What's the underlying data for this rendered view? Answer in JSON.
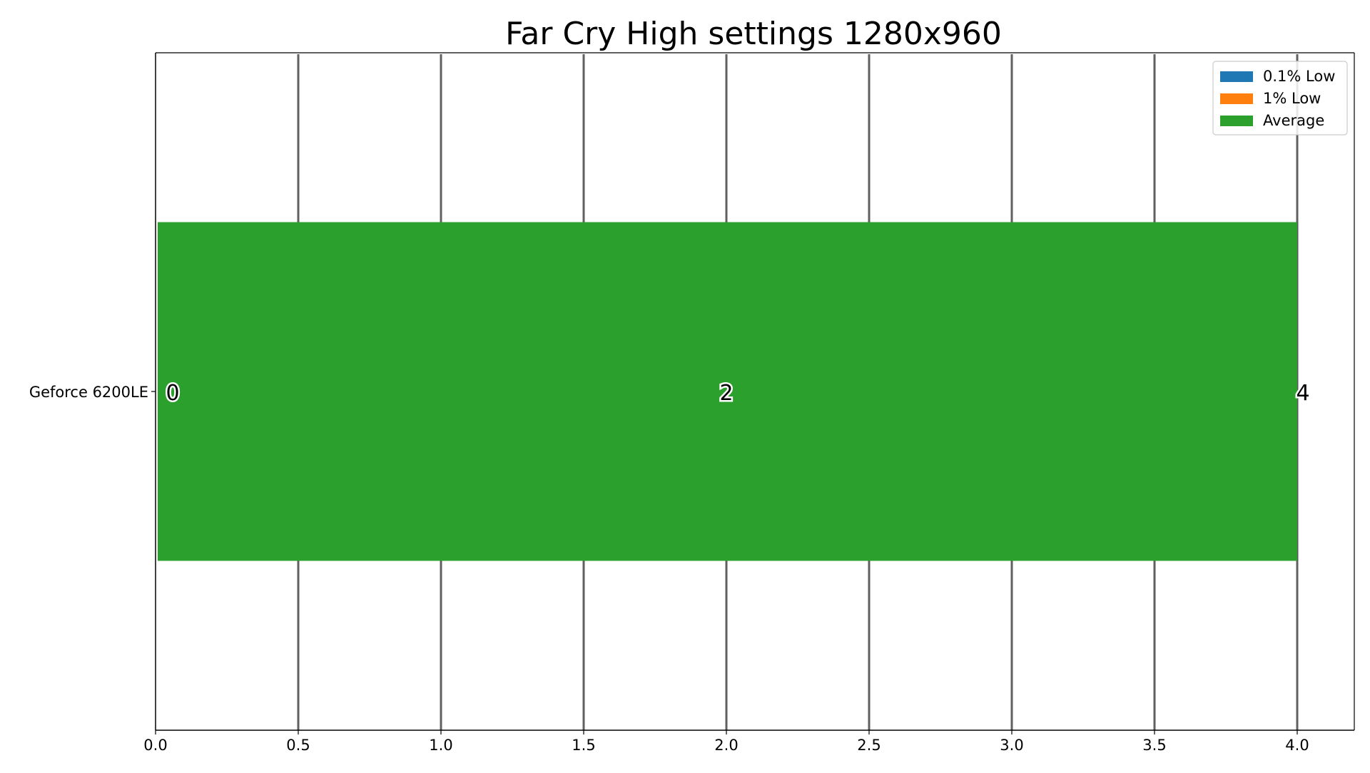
{
  "chart_data": {
    "type": "bar",
    "orientation": "horizontal",
    "stacked": false,
    "title": "Far Cry High settings 1280x960",
    "xlabel": "",
    "ylabel": "",
    "categories": [
      "Geforce 6200LE"
    ],
    "series": [
      {
        "name": "0.1% Low",
        "values": [
          0
        ],
        "color": "#1f77b4"
      },
      {
        "name": "1% Low",
        "values": [
          2
        ],
        "color": "#ff7f0e"
      },
      {
        "name": "Average",
        "values": [
          4
        ],
        "color": "#2ca02c"
      }
    ],
    "data_labels": [
      "0",
      "2",
      "4"
    ],
    "xlim": [
      0,
      4.2
    ],
    "xticks": [
      "0.0",
      "0.5",
      "1.0",
      "1.5",
      "2.0",
      "2.5",
      "3.0",
      "3.5",
      "4.0"
    ],
    "grid": true,
    "legend": "top-right"
  }
}
